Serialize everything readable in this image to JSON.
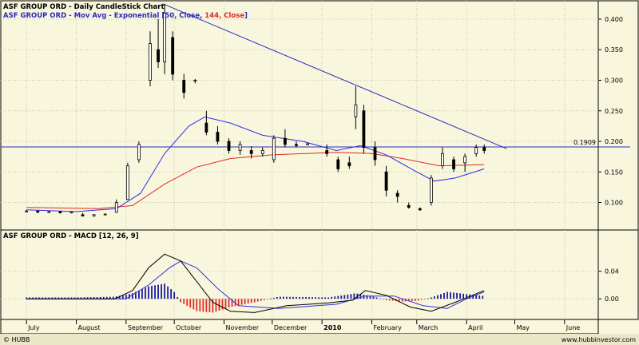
{
  "chart_data": [
    {
      "type": "candlestick",
      "title": "ASF GROUP ORD - Daily CandleStick Chart",
      "subtitle": "ASF GROUP ORD - Mov Avg - Exponential [50, Close, 144, Close]",
      "subtitle_parts": {
        "prefix": "ASF GROUP ORD - Mov Avg - Exponential [50, Close, ",
        "second": "144, Close",
        "suffix": "]"
      },
      "ylim": [
        0.055,
        0.43
      ],
      "yticks": [
        "0.100",
        "0.150",
        "0.200",
        "0.250",
        "0.300",
        "0.350",
        "0.400"
      ],
      "price_line": {
        "value": 0.1909,
        "label": "0.1909",
        "color": "#2b2bc0"
      },
      "trendline": {
        "start": [
          "2009-09-24",
          0.425
        ],
        "end": [
          "2010-04-26",
          0.188
        ],
        "color": "#2b2bc0"
      },
      "ema50_color": "#2f2fe6",
      "ema144_color": "#e02a2a",
      "candles": [
        [
          "2009-07-01",
          0.085,
          0.088,
          0.084,
          0.086
        ],
        [
          "2009-07-08",
          0.086,
          0.087,
          0.083,
          0.084
        ],
        [
          "2009-07-15",
          0.084,
          0.086,
          0.083,
          0.085
        ],
        [
          "2009-07-22",
          0.085,
          0.086,
          0.082,
          0.083
        ],
        [
          "2009-07-29",
          0.083,
          0.086,
          0.082,
          0.085
        ],
        [
          "2009-08-05",
          0.08,
          0.083,
          0.077,
          0.078
        ],
        [
          "2009-08-12",
          0.078,
          0.081,
          0.077,
          0.08
        ],
        [
          "2009-08-19",
          0.08,
          0.082,
          0.079,
          0.081
        ],
        [
          "2009-08-26",
          0.084,
          0.105,
          0.083,
          0.1
        ],
        [
          "2009-09-02",
          0.105,
          0.165,
          0.104,
          0.16
        ],
        [
          "2009-09-09",
          0.17,
          0.2,
          0.165,
          0.195
        ],
        [
          "2009-09-16",
          0.3,
          0.38,
          0.29,
          0.36
        ],
        [
          "2009-09-21",
          0.35,
          0.4,
          0.32,
          0.33
        ],
        [
          "2009-09-25",
          0.33,
          0.425,
          0.31,
          0.41
        ],
        [
          "2009-09-30",
          0.37,
          0.38,
          0.3,
          0.31
        ],
        [
          "2009-10-07",
          0.3,
          0.31,
          0.27,
          0.28
        ],
        [
          "2009-10-14",
          0.3,
          0.302,
          0.295,
          0.3
        ],
        [
          "2009-10-21",
          0.23,
          0.25,
          0.21,
          0.215
        ],
        [
          "2009-10-28",
          0.215,
          0.225,
          0.195,
          0.2
        ],
        [
          "2009-11-04",
          0.2,
          0.205,
          0.18,
          0.185
        ],
        [
          "2009-11-11",
          0.185,
          0.2,
          0.178,
          0.195
        ],
        [
          "2009-11-18",
          0.185,
          0.192,
          0.172,
          0.18
        ],
        [
          "2009-11-25",
          0.18,
          0.19,
          0.175,
          0.185
        ],
        [
          "2009-12-02",
          0.17,
          0.21,
          0.165,
          0.205
        ],
        [
          "2009-12-09",
          0.205,
          0.22,
          0.19,
          0.195
        ],
        [
          "2009-12-16",
          0.195,
          0.2,
          0.19,
          0.193
        ],
        [
          "2009-12-23",
          0.195,
          0.197,
          0.194,
          0.196
        ],
        [
          "2010-01-04",
          0.185,
          0.195,
          0.175,
          0.18
        ],
        [
          "2010-01-11",
          0.17,
          0.175,
          0.15,
          0.155
        ],
        [
          "2010-01-18",
          0.165,
          0.175,
          0.155,
          0.16
        ],
        [
          "2010-01-22",
          0.24,
          0.29,
          0.22,
          0.26
        ],
        [
          "2010-01-27",
          0.25,
          0.26,
          0.18,
          0.19
        ],
        [
          "2010-02-03",
          0.19,
          0.2,
          0.16,
          0.17
        ],
        [
          "2010-02-10",
          0.15,
          0.16,
          0.11,
          0.12
        ],
        [
          "2010-02-17",
          0.115,
          0.12,
          0.1,
          0.11
        ],
        [
          "2010-02-24",
          0.095,
          0.1,
          0.09,
          0.092
        ],
        [
          "2010-03-03",
          0.09,
          0.092,
          0.086,
          0.088
        ],
        [
          "2010-03-10",
          0.1,
          0.145,
          0.095,
          0.14
        ],
        [
          "2010-03-17",
          0.16,
          0.19,
          0.155,
          0.18
        ],
        [
          "2010-03-24",
          0.17,
          0.175,
          0.15,
          0.155
        ],
        [
          "2010-03-31",
          0.165,
          0.18,
          0.15,
          0.175
        ],
        [
          "2010-04-07",
          0.18,
          0.195,
          0.175,
          0.19
        ],
        [
          "2010-04-12",
          0.19,
          0.195,
          0.18,
          0.185
        ]
      ],
      "ema50": [
        [
          "2009-07-01",
          0.088
        ],
        [
          "2009-08-01",
          0.085
        ],
        [
          "2009-08-26",
          0.09
        ],
        [
          "2009-09-10",
          0.115
        ],
        [
          "2009-09-25",
          0.18
        ],
        [
          "2009-10-10",
          0.225
        ],
        [
          "2009-10-20",
          0.24
        ],
        [
          "2009-11-05",
          0.23
        ],
        [
          "2009-11-25",
          0.21
        ],
        [
          "2009-12-20",
          0.2
        ],
        [
          "2010-01-10",
          0.185
        ],
        [
          "2010-01-25",
          0.193
        ],
        [
          "2010-02-10",
          0.178
        ],
        [
          "2010-03-01",
          0.15
        ],
        [
          "2010-03-12",
          0.135
        ],
        [
          "2010-03-25",
          0.14
        ],
        [
          "2010-04-12",
          0.155
        ]
      ],
      "ema144": [
        [
          "2009-07-01",
          0.092
        ],
        [
          "2009-08-15",
          0.09
        ],
        [
          "2009-09-05",
          0.095
        ],
        [
          "2009-09-25",
          0.13
        ],
        [
          "2009-10-15",
          0.158
        ],
        [
          "2009-11-05",
          0.172
        ],
        [
          "2009-12-01",
          0.178
        ],
        [
          "2010-01-10",
          0.182
        ],
        [
          "2010-02-01",
          0.18
        ],
        [
          "2010-02-20",
          0.172
        ],
        [
          "2010-03-15",
          0.16
        ],
        [
          "2010-04-12",
          0.162
        ]
      ]
    },
    {
      "type": "macd",
      "title": "ASF GROUP ORD - MACD [12, 26, 9]",
      "ylim": [
        -0.03,
        0.1
      ],
      "yticks": [
        "0.00",
        "0.04"
      ],
      "macd_line": [
        [
          "2009-07-01",
          0.0
        ],
        [
          "2009-08-25",
          0.0
        ],
        [
          "2009-09-05",
          0.012
        ],
        [
          "2009-09-15",
          0.045
        ],
        [
          "2009-09-25",
          0.065
        ],
        [
          "2009-10-05",
          0.055
        ],
        [
          "2009-10-15",
          0.025
        ],
        [
          "2009-10-25",
          -0.005
        ],
        [
          "2009-11-05",
          -0.018
        ],
        [
          "2009-11-20",
          -0.02
        ],
        [
          "2009-12-10",
          -0.01
        ],
        [
          "2010-01-05",
          -0.006
        ],
        [
          "2010-01-20",
          -0.002
        ],
        [
          "2010-01-28",
          0.012
        ],
        [
          "2010-02-10",
          0.005
        ],
        [
          "2010-02-25",
          -0.012
        ],
        [
          "2010-03-10",
          -0.018
        ],
        [
          "2010-03-25",
          -0.005
        ],
        [
          "2010-04-12",
          0.012
        ]
      ],
      "signal_line": [
        [
          "2009-07-01",
          0.0
        ],
        [
          "2009-09-01",
          0.0
        ],
        [
          "2009-09-15",
          0.02
        ],
        [
          "2009-09-28",
          0.045
        ],
        [
          "2009-10-05",
          0.055
        ],
        [
          "2009-10-15",
          0.045
        ],
        [
          "2009-10-28",
          0.015
        ],
        [
          "2009-11-10",
          -0.01
        ],
        [
          "2009-12-05",
          -0.014
        ],
        [
          "2010-01-10",
          -0.008
        ],
        [
          "2010-01-28",
          0.004
        ],
        [
          "2010-02-15",
          0.004
        ],
        [
          "2010-03-05",
          -0.01
        ],
        [
          "2010-03-20",
          -0.014
        ],
        [
          "2010-04-01",
          0.0
        ],
        [
          "2010-04-12",
          0.01
        ]
      ],
      "histogram": [
        [
          "2009-07-01",
          0.002
        ],
        [
          "2009-08-01",
          0.002
        ],
        [
          "2009-08-25",
          0.003
        ],
        [
          "2009-09-05",
          0.008
        ],
        [
          "2009-09-15",
          0.018
        ],
        [
          "2009-09-25",
          0.022
        ],
        [
          "2009-10-01",
          0.01
        ],
        [
          "2009-10-05",
          -0.005
        ],
        [
          "2009-10-15",
          -0.018
        ],
        [
          "2009-10-25",
          -0.02
        ],
        [
          "2009-11-05",
          -0.012
        ],
        [
          "2009-11-20",
          -0.005
        ],
        [
          "2009-12-05",
          0.003
        ],
        [
          "2010-01-05",
          0.002
        ],
        [
          "2010-01-22",
          0.008
        ],
        [
          "2010-02-01",
          0.004
        ],
        [
          "2010-02-10",
          -0.002
        ],
        [
          "2010-02-20",
          -0.004
        ],
        [
          "2010-03-01",
          -0.003
        ],
        [
          "2010-03-10",
          0.002
        ],
        [
          "2010-03-20",
          0.01
        ],
        [
          "2010-04-12",
          0.004
        ]
      ],
      "macd_color": "#000000",
      "signal_color": "#2f2fe6",
      "hist_pos_color": "#1a1aa6",
      "hist_neg_color": "#e02a2a"
    }
  ],
  "x_axis": {
    "labels": [
      {
        "date": "2009-07-01",
        "label": "July"
      },
      {
        "date": "2009-08-01",
        "label": "August"
      },
      {
        "date": "2009-09-01",
        "label": "September"
      },
      {
        "date": "2009-10-01",
        "label": "October"
      },
      {
        "date": "2009-11-01",
        "label": "November"
      },
      {
        "date": "2009-12-01",
        "label": "December"
      },
      {
        "date": "2010-01-01",
        "label": "2010",
        "bold": true
      },
      {
        "date": "2010-02-01",
        "label": "February"
      },
      {
        "date": "2010-03-01",
        "label": "March"
      },
      {
        "date": "2010-04-01",
        "label": "April"
      },
      {
        "date": "2010-05-01",
        "label": "May"
      },
      {
        "date": "2010-06-01",
        "label": "June"
      }
    ]
  },
  "footer": {
    "left": "© HUBB",
    "right": "www.hubbinvestor.com"
  }
}
